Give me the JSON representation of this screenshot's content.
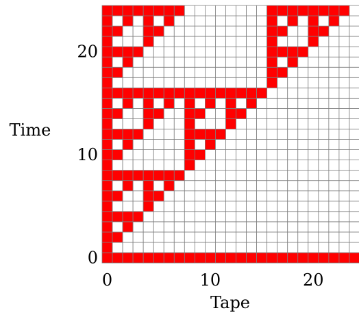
{
  "chart_data": {
    "type": "heatmap",
    "title": "",
    "xlabel": "Tape",
    "ylabel": "Time",
    "x_range": [
      0,
      24
    ],
    "y_range": [
      0,
      24
    ],
    "grid": true,
    "xticks": [
      {
        "value": 0,
        "label": "0"
      },
      {
        "value": 10,
        "label": "10"
      },
      {
        "value": 20,
        "label": "20"
      }
    ],
    "yticks": [
      {
        "value": 0,
        "label": "0"
      },
      {
        "value": 10,
        "label": "10"
      },
      {
        "value": 20,
        "label": "20"
      }
    ],
    "filled_color": "#ff0000",
    "empty_color": "#ffffff",
    "grid_color": "#7f7f7f",
    "rows_from_bottom": [
      "1111111111111111111111111",
      "1",
      "11",
      "101",
      "1111",
      "10001",
      "110011",
      "1010101",
      "11111111",
      "100000001",
      "1100000011",
      "10100000101",
      "111100001111",
      "1000100010001",
      "11001100110011",
      "101010101010101",
      "1111111111111111",
      "10000000000000001",
      "110000000000000011",
      "1010000000000000101",
      "11110000000000001111",
      "100010000000000010001",
      "1100110000000000110011",
      "10101010000000001010101",
      "111111110000000011111111"
    ]
  }
}
